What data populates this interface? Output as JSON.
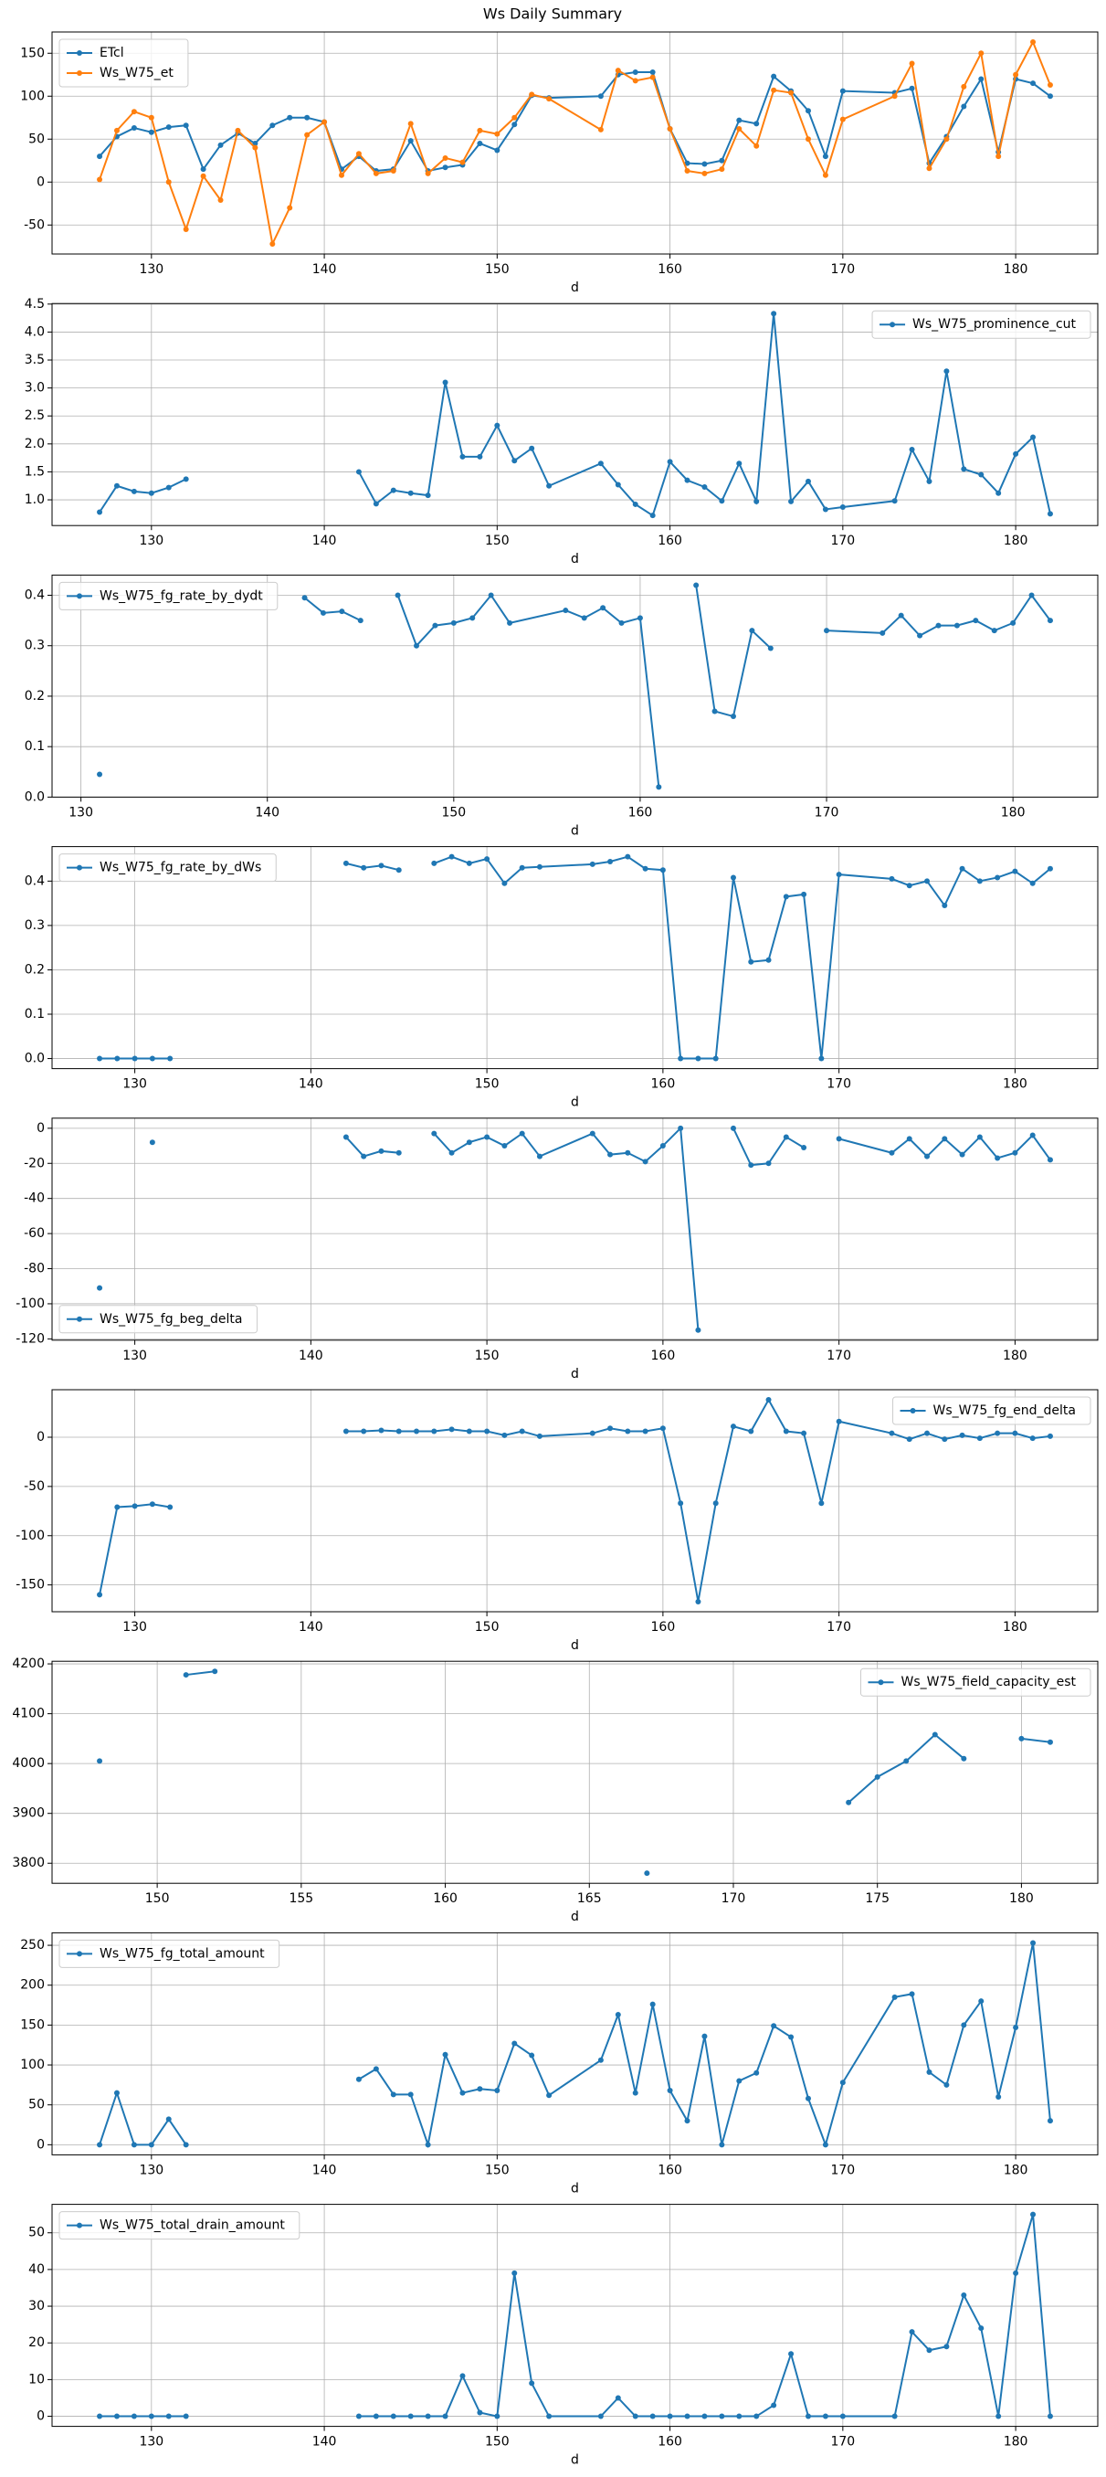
{
  "title": "Ws Daily Summary",
  "chart_data": [
    {
      "type": "line",
      "xlabel": "d",
      "grid": true,
      "legend": "upper left",
      "x": [
        127,
        128,
        129,
        130,
        131,
        132,
        133,
        134,
        135,
        136,
        137,
        138,
        139,
        140,
        141,
        142,
        143,
        144,
        145,
        146,
        147,
        148,
        149,
        150,
        151,
        152,
        153,
        156,
        157,
        158,
        159,
        160,
        161,
        162,
        163,
        164,
        165,
        166,
        167,
        168,
        169,
        170,
        173,
        174,
        175,
        176,
        177,
        178,
        179,
        180,
        181,
        182
      ],
      "series": [
        {
          "name": "ETcl",
          "color": "#1f77b4",
          "values": [
            30,
            53,
            63,
            58,
            64,
            66,
            15,
            43,
            57,
            45,
            66,
            75,
            75,
            70,
            15,
            30,
            13,
            15,
            48,
            13,
            17,
            20,
            45,
            37,
            67,
            101,
            98,
            100,
            125,
            128,
            128,
            62,
            22,
            21,
            25,
            72,
            68,
            123,
            106,
            83,
            30,
            106,
            104,
            109,
            22,
            53,
            88,
            120,
            35,
            120,
            115,
            100
          ]
        },
        {
          "name": "Ws_W75_et",
          "color": "#ff7f0e",
          "values": [
            3,
            60,
            82,
            75,
            0,
            -55,
            7,
            -21,
            60,
            40,
            -72,
            -30,
            55,
            70,
            8,
            33,
            10,
            13,
            68,
            10,
            28,
            23,
            60,
            56,
            75,
            102,
            97,
            61,
            130,
            118,
            122,
            62,
            13,
            10,
            15,
            62,
            42,
            107,
            104,
            50,
            8,
            73,
            100,
            138,
            16,
            50,
            111,
            150,
            30,
            125,
            163,
            113
          ]
        }
      ],
      "xlim": [
        124.25,
        184.75
      ],
      "ylim": [
        -83.75,
        174.75
      ],
      "xticks": [
        130,
        140,
        150,
        160,
        170,
        180
      ],
      "yticks": [
        -50,
        0,
        50,
        100,
        150
      ]
    },
    {
      "type": "line",
      "xlabel": "d",
      "grid": true,
      "legend": "upper right",
      "x": [
        127,
        128,
        129,
        130,
        131,
        132,
        141,
        142,
        143,
        144,
        145,
        146,
        147,
        148,
        149,
        150,
        151,
        152,
        153,
        156,
        157,
        158,
        159,
        160,
        161,
        162,
        163,
        164,
        165,
        166,
        167,
        168,
        169,
        170,
        173,
        174,
        175,
        176,
        177,
        178,
        179,
        180,
        181,
        182
      ],
      "series": [
        {
          "name": "Ws_W75_prominence_cut",
          "color": "#1f77b4",
          "values": [
            0.78,
            1.25,
            1.15,
            1.12,
            1.22,
            1.37,
            null,
            1.5,
            0.93,
            1.17,
            1.12,
            1.08,
            3.1,
            1.77,
            1.77,
            2.33,
            1.7,
            1.92,
            1.25,
            1.65,
            1.27,
            0.92,
            0.72,
            1.68,
            1.35,
            1.23,
            0.98,
            1.65,
            0.97,
            4.33,
            0.97,
            1.33,
            0.83,
            0.87,
            0.98,
            1.9,
            1.33,
            3.3,
            1.55,
            1.45,
            1.12,
            1.82,
            2.12,
            0.75
          ]
        }
      ],
      "xlim": [
        124.25,
        184.75
      ],
      "ylim": [
        0.54,
        4.51
      ],
      "xticks": [
        130,
        140,
        150,
        160,
        170,
        180
      ],
      "yticks": [
        {
          "value": 1.0,
          "label": "1.0"
        },
        {
          "value": 1.5,
          "label": "1.5"
        },
        {
          "value": 2.0,
          "label": "2.0"
        },
        {
          "value": 2.5,
          "label": "2.5"
        },
        {
          "value": 3.0,
          "label": "3.0"
        },
        {
          "value": 3.5,
          "label": "3.5"
        },
        {
          "value": 4.0,
          "label": "4.0"
        },
        {
          "value": 4.5,
          "label": "4.5"
        }
      ]
    },
    {
      "type": "line",
      "xlabel": "d",
      "grid": true,
      "legend": "upper left",
      "x": [
        131,
        141,
        142,
        143,
        144,
        145,
        146,
        147,
        148,
        149,
        150,
        151,
        152,
        153,
        156,
        157,
        158,
        159,
        160,
        161,
        162,
        163,
        164,
        165,
        166,
        167,
        168,
        170,
        173,
        174,
        175,
        176,
        177,
        178,
        179,
        180,
        181,
        182
      ],
      "series": [
        {
          "name": "Ws_W75_fg_rate_by_dydt",
          "color": "#1f77b4",
          "values": [
            0.045,
            null,
            0.395,
            0.365,
            0.368,
            0.35,
            null,
            0.4,
            0.3,
            0.34,
            0.345,
            0.355,
            0.4,
            0.345,
            0.37,
            0.355,
            0.375,
            0.345,
            0.355,
            0.02,
            null,
            0.42,
            0.17,
            0.16,
            0.33,
            0.295,
            null,
            0.33,
            0.325,
            0.36,
            0.32,
            0.34,
            0.34,
            0.35,
            0.33,
            0.345,
            0.4,
            0.35
          ]
        }
      ],
      "xlim": [
        128.45,
        184.55
      ],
      "ylim": [
        0,
        0.44
      ],
      "xticks": [
        130,
        140,
        150,
        160,
        170,
        180
      ],
      "yticks": [
        {
          "value": 0,
          "label": "0.0"
        },
        {
          "value": 0.1,
          "label": "0.1"
        },
        {
          "value": 0.2,
          "label": "0.2"
        },
        {
          "value": 0.3,
          "label": "0.3"
        },
        {
          "value": 0.4,
          "label": "0.4"
        }
      ]
    },
    {
      "type": "line",
      "xlabel": "d",
      "grid": true,
      "legend": "upper left",
      "x": [
        128,
        129,
        130,
        131,
        132,
        141,
        142,
        143,
        144,
        145,
        146,
        147,
        148,
        149,
        150,
        151,
        152,
        153,
        156,
        157,
        158,
        159,
        160,
        161,
        162,
        163,
        164,
        165,
        166,
        167,
        168,
        169,
        170,
        173,
        174,
        175,
        176,
        177,
        178,
        179,
        180,
        181,
        182
      ],
      "series": [
        {
          "name": "Ws_W75_fg_rate_by_dWs",
          "color": "#1f77b4",
          "values": [
            0,
            0,
            0,
            0,
            0,
            null,
            0.44,
            0.43,
            0.435,
            0.425,
            null,
            0.44,
            0.455,
            0.44,
            0.45,
            0.395,
            0.43,
            0.432,
            0.438,
            0.444,
            0.455,
            0.428,
            0.425,
            0,
            0,
            0,
            0.408,
            0.218,
            0.222,
            0.365,
            0.37,
            0,
            0.415,
            0.405,
            0.39,
            0.4,
            0.345,
            0.428,
            0.4,
            0.408,
            0.422,
            0.395,
            0.428
          ]
        }
      ],
      "xlim": [
        125.3,
        184.7
      ],
      "ylim": [
        -0.02275,
        0.47775
      ],
      "xticks": [
        130,
        140,
        150,
        160,
        170,
        180
      ],
      "yticks": [
        {
          "value": 0,
          "label": "0.0"
        },
        {
          "value": 0.1,
          "label": "0.1"
        },
        {
          "value": 0.2,
          "label": "0.2"
        },
        {
          "value": 0.3,
          "label": "0.3"
        },
        {
          "value": 0.4,
          "label": "0.4"
        }
      ]
    },
    {
      "type": "line",
      "xlabel": "d",
      "grid": true,
      "legend": "lower left",
      "x": [
        128,
        129,
        131,
        132,
        142,
        143,
        144,
        145,
        146,
        147,
        148,
        149,
        150,
        151,
        152,
        153,
        156,
        157,
        158,
        159,
        160,
        161,
        162,
        163,
        164,
        165,
        166,
        167,
        168,
        169,
        170,
        173,
        174,
        175,
        176,
        177,
        178,
        179,
        180,
        181,
        182
      ],
      "series": [
        {
          "name": "Ws_W75_fg_beg_delta",
          "color": "#1f77b4",
          "values": [
            -91,
            null,
            -8,
            null,
            -5,
            -16,
            -13,
            -14,
            null,
            -3,
            -14,
            -8,
            -5,
            -10,
            -3,
            -16,
            -3,
            -15,
            -14,
            -19,
            -10,
            0,
            -115,
            null,
            0,
            -21,
            -20,
            -5,
            -11,
            null,
            -6,
            -14,
            -6,
            -16,
            -6,
            -15,
            -5,
            -17,
            -14,
            -4,
            -18
          ]
        }
      ],
      "xlim": [
        125.3,
        184.7
      ],
      "ylim": [
        -120.75,
        5.75
      ],
      "xticks": [
        130,
        140,
        150,
        160,
        170,
        180
      ],
      "yticks": [
        -120,
        -100,
        -80,
        -60,
        -40,
        -20,
        0
      ]
    },
    {
      "type": "line",
      "xlabel": "d",
      "grid": true,
      "legend": "upper right",
      "x": [
        128,
        129,
        130,
        131,
        132,
        141,
        142,
        143,
        144,
        145,
        146,
        147,
        148,
        149,
        150,
        151,
        152,
        153,
        156,
        157,
        158,
        159,
        160,
        161,
        162,
        163,
        164,
        165,
        166,
        167,
        168,
        169,
        170,
        173,
        174,
        175,
        176,
        177,
        178,
        179,
        180,
        181,
        182
      ],
      "series": [
        {
          "name": "Ws_W75_fg_end_delta",
          "color": "#1f77b4",
          "values": [
            -160,
            -71,
            -70,
            -68,
            -71,
            null,
            6,
            6,
            7,
            6,
            6,
            6,
            8,
            6,
            6,
            2,
            6,
            1,
            4,
            9,
            6,
            6,
            9,
            -67,
            -167,
            -67,
            11,
            6,
            38,
            6,
            4,
            -67,
            16,
            4,
            -2,
            4,
            -2,
            2,
            -1,
            4,
            4,
            -1,
            1
          ]
        }
      ],
      "xlim": [
        125.3,
        184.7
      ],
      "ylim": [
        -177.25,
        48.25
      ],
      "xticks": [
        130,
        140,
        150,
        160,
        170,
        180
      ],
      "yticks": [
        -150,
        -100,
        -50,
        0
      ]
    },
    {
      "type": "line",
      "xlabel": "d",
      "grid": true,
      "legend": "upper right",
      "x": [
        148,
        150,
        151,
        152,
        153,
        167,
        168,
        174,
        175,
        176,
        177,
        178,
        179,
        180,
        181
      ],
      "series": [
        {
          "name": "Ws_W75_field_capacity_est",
          "color": "#1f77b4",
          "values": [
            4005,
            null,
            4178,
            4185,
            null,
            3780,
            null,
            3922,
            3973,
            4005,
            4058,
            4010,
            null,
            4050,
            4043
          ]
        }
      ],
      "xlim": [
        146.35,
        182.65
      ],
      "ylim": [
        3759.75,
        4205.25
      ],
      "xticks": [
        150,
        155,
        160,
        165,
        170,
        175,
        180
      ],
      "yticks": [
        3800,
        3900,
        4000,
        4100,
        4200
      ]
    },
    {
      "type": "line",
      "xlabel": "d",
      "grid": true,
      "legend": "upper left",
      "x": [
        127,
        128,
        129,
        130,
        131,
        132,
        141,
        142,
        143,
        144,
        145,
        146,
        147,
        148,
        149,
        150,
        151,
        152,
        153,
        156,
        157,
        158,
        159,
        160,
        161,
        162,
        163,
        164,
        165,
        166,
        167,
        168,
        169,
        170,
        173,
        174,
        175,
        176,
        177,
        178,
        179,
        180,
        181,
        182
      ],
      "series": [
        {
          "name": "Ws_W75_fg_total_amount",
          "color": "#1f77b4",
          "values": [
            0,
            65,
            0,
            0,
            32,
            0,
            null,
            82,
            95,
            63,
            63,
            0,
            113,
            65,
            70,
            68,
            127,
            112,
            62,
            106,
            163,
            65,
            176,
            68,
            30,
            136,
            0,
            80,
            90,
            149,
            135,
            58,
            0,
            78,
            185,
            189,
            91,
            75,
            150,
            180,
            60,
            147,
            253,
            30
          ]
        }
      ],
      "xlim": [
        124.25,
        184.75
      ],
      "ylim": [
        -12.65,
        265.65
      ],
      "xticks": [
        130,
        140,
        150,
        160,
        170,
        180
      ],
      "yticks": [
        0,
        50,
        100,
        150,
        200,
        250
      ]
    },
    {
      "type": "line",
      "xlabel": "d",
      "grid": true,
      "legend": "upper left",
      "x": [
        127,
        128,
        129,
        130,
        131,
        132,
        141,
        142,
        143,
        144,
        145,
        146,
        147,
        148,
        149,
        150,
        151,
        152,
        153,
        156,
        157,
        158,
        159,
        160,
        161,
        162,
        163,
        164,
        165,
        166,
        167,
        168,
        169,
        170,
        173,
        174,
        175,
        176,
        177,
        178,
        179,
        180,
        181,
        182
      ],
      "series": [
        {
          "name": "Ws_W75_total_drain_amount",
          "color": "#1f77b4",
          "values": [
            0,
            0,
            0,
            0,
            0,
            0,
            null,
            0,
            0,
            0,
            0,
            0,
            0,
            11,
            1,
            0,
            39,
            9,
            0,
            0,
            5,
            0,
            0,
            0,
            0,
            0,
            0,
            0,
            0,
            3,
            17,
            0,
            0,
            0,
            0,
            23,
            18,
            19,
            33,
            24,
            0,
            39,
            55,
            0
          ]
        }
      ],
      "xlim": [
        124.25,
        184.75
      ],
      "ylim": [
        -2.75,
        57.75
      ],
      "xticks": [
        130,
        140,
        150,
        160,
        170,
        180
      ],
      "yticks": [
        0,
        10,
        20,
        30,
        40,
        50
      ]
    }
  ]
}
